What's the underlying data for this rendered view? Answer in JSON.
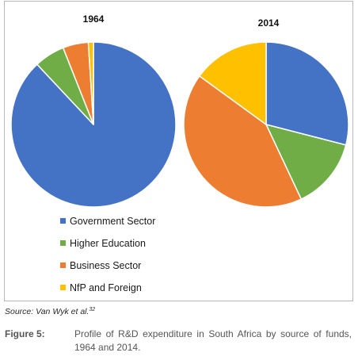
{
  "chart_data": {
    "type": "pie",
    "charts": [
      {
        "title": "1964",
        "slices": [
          {
            "label": "Government Sector",
            "value": 88
          },
          {
            "label": "Higher Education",
            "value": 6
          },
          {
            "label": "Business Sector",
            "value": 5
          },
          {
            "label": "NfP and Foreign",
            "value": 1
          }
        ]
      },
      {
        "title": "2014",
        "slices": [
          {
            "label": "Government Sector",
            "value": 29
          },
          {
            "label": "Higher Education",
            "value": 14
          },
          {
            "label": "Business Sector",
            "value": 42
          },
          {
            "label": "NfP and Foreign",
            "value": 15
          }
        ]
      }
    ],
    "legend": [
      {
        "label": "Government Sector",
        "color": "#4472c4"
      },
      {
        "label": "Higher Education",
        "color": "#70ad47"
      },
      {
        "label": "Business Sector",
        "color": "#ed7d31"
      },
      {
        "label": "NfP and Foreign",
        "color": "#ffc000"
      }
    ],
    "legend_position": "bottom-left"
  },
  "source": {
    "text": "Source: Van Wyk et al.",
    "ref": "32"
  },
  "caption": {
    "label": "Figure 5:",
    "text": "Profile of R&D expenditure in South Africa by source of funds, 1964 and 2014."
  }
}
